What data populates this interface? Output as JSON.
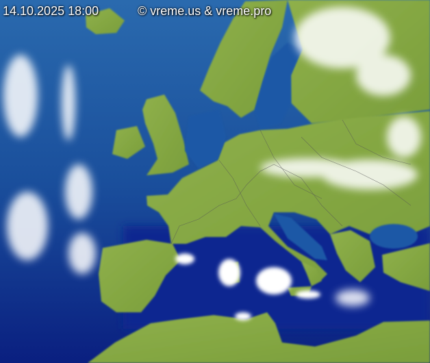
{
  "header": {
    "timestamp": "14.10.2025 18:00",
    "copyright": "© vreme.us & vreme.pro"
  },
  "map": {
    "type": "satellite-infrared-composite",
    "region": "Europe",
    "colors": {
      "sea_deep": "#08238a",
      "sea": "#1f5aa8",
      "land": "#8aa84a",
      "land_light": "#a8b878",
      "cloud": "#ffffff",
      "border": "#505050"
    }
  }
}
